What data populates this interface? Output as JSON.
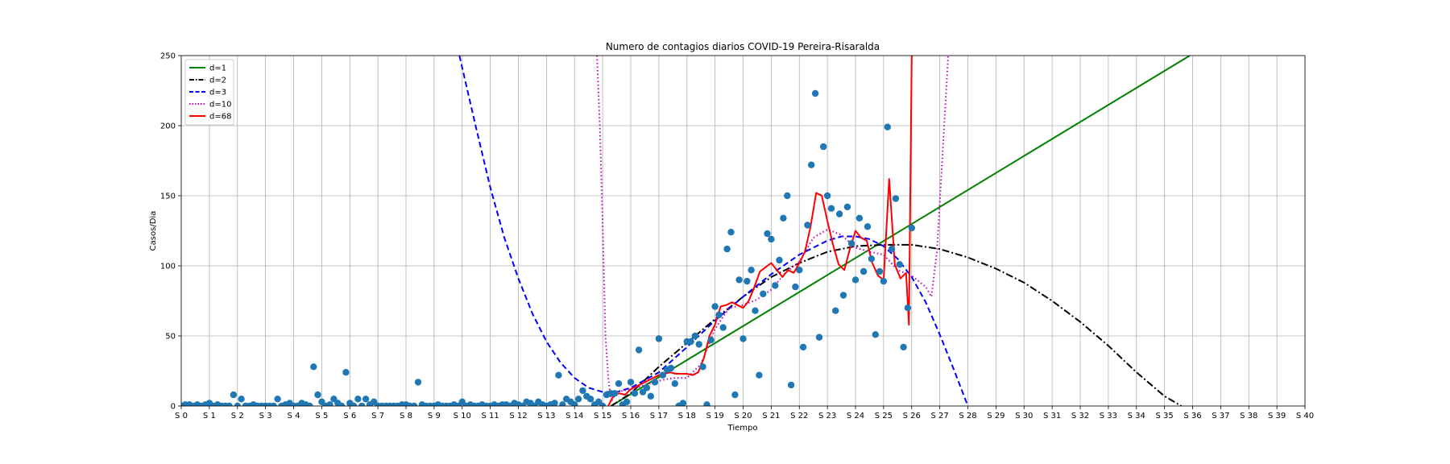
{
  "chart_data": {
    "type": "scatter",
    "title": "Numero de contagios diarios COVID-19 Pereira-Risaralda",
    "xlabel": "Tiempo",
    "ylabel": "Casos/Dia",
    "xlim": [
      0,
      40
    ],
    "ylim": [
      0,
      250
    ],
    "grid": true,
    "legend_position": "upper-left",
    "x_ticks": [
      "S 0",
      "S 1",
      "S 2",
      "S 3",
      "S 4",
      "S 5",
      "S 6",
      "S 7",
      "S 8",
      "S 9",
      "S 10",
      "S 11",
      "S 12",
      "S 13",
      "S 14",
      "S 15",
      "S 16",
      "S 17",
      "S 18",
      "S 19",
      "S 20",
      "S 21",
      "S 22",
      "S 23",
      "S 24",
      "S 25",
      "S 26",
      "S 27",
      "S 28",
      "S 29",
      "S 30",
      "S 31",
      "S 32",
      "S 33",
      "S 34",
      "S 35",
      "S 36",
      "S 37",
      "S 38",
      "S 39",
      "S 40"
    ],
    "y_ticks": [
      0,
      50,
      100,
      150,
      200,
      250
    ],
    "scatter_color": "#1f77b4",
    "points": [
      [
        0.0,
        0
      ],
      [
        0.14,
        1
      ],
      [
        0.29,
        1
      ],
      [
        0.43,
        0
      ],
      [
        0.57,
        1
      ],
      [
        0.71,
        0
      ],
      [
        0.86,
        1
      ],
      [
        1.0,
        2
      ],
      [
        1.14,
        0
      ],
      [
        1.29,
        1
      ],
      [
        1.43,
        0
      ],
      [
        1.57,
        0
      ],
      [
        1.71,
        0
      ],
      [
        1.86,
        8
      ],
      [
        2.0,
        0
      ],
      [
        2.14,
        5
      ],
      [
        2.29,
        0
      ],
      [
        2.43,
        0
      ],
      [
        2.57,
        1
      ],
      [
        2.71,
        0
      ],
      [
        2.86,
        0
      ],
      [
        3.0,
        0
      ],
      [
        3.14,
        0
      ],
      [
        3.29,
        0
      ],
      [
        3.43,
        5
      ],
      [
        3.57,
        0
      ],
      [
        3.71,
        1
      ],
      [
        3.86,
        2
      ],
      [
        4.0,
        0
      ],
      [
        4.14,
        0
      ],
      [
        4.29,
        2
      ],
      [
        4.43,
        1
      ],
      [
        4.57,
        0
      ],
      [
        4.71,
        28
      ],
      [
        4.86,
        8
      ],
      [
        5.0,
        3
      ],
      [
        5.14,
        0
      ],
      [
        5.29,
        1
      ],
      [
        5.43,
        5
      ],
      [
        5.57,
        2
      ],
      [
        5.71,
        0
      ],
      [
        5.86,
        24
      ],
      [
        6.0,
        2
      ],
      [
        6.14,
        0
      ],
      [
        6.29,
        5
      ],
      [
        6.43,
        0
      ],
      [
        6.57,
        5
      ],
      [
        6.71,
        1
      ],
      [
        6.86,
        3
      ],
      [
        7.0,
        0
      ],
      [
        7.14,
        0
      ],
      [
        7.29,
        0
      ],
      [
        7.43,
        0
      ],
      [
        7.57,
        0
      ],
      [
        7.71,
        0
      ],
      [
        7.86,
        1
      ],
      [
        8.0,
        1
      ],
      [
        8.14,
        0
      ],
      [
        8.29,
        0
      ],
      [
        8.43,
        17
      ],
      [
        8.57,
        1
      ],
      [
        8.71,
        0
      ],
      [
        8.86,
        0
      ],
      [
        9.0,
        0
      ],
      [
        9.14,
        1
      ],
      [
        9.29,
        0
      ],
      [
        9.43,
        0
      ],
      [
        9.57,
        0
      ],
      [
        9.71,
        1
      ],
      [
        9.86,
        0
      ],
      [
        10.0,
        3
      ],
      [
        10.14,
        0
      ],
      [
        10.29,
        1
      ],
      [
        10.43,
        0
      ],
      [
        10.57,
        0
      ],
      [
        10.71,
        1
      ],
      [
        10.86,
        0
      ],
      [
        11.0,
        0
      ],
      [
        11.14,
        1
      ],
      [
        11.29,
        0
      ],
      [
        11.43,
        1
      ],
      [
        11.57,
        1
      ],
      [
        11.71,
        0
      ],
      [
        11.86,
        2
      ],
      [
        12.0,
        1
      ],
      [
        12.14,
        0
      ],
      [
        12.29,
        3
      ],
      [
        12.43,
        2
      ],
      [
        12.57,
        0
      ],
      [
        12.71,
        3
      ],
      [
        12.86,
        1
      ],
      [
        13.0,
        0
      ],
      [
        13.14,
        1
      ],
      [
        13.29,
        2
      ],
      [
        13.43,
        22
      ],
      [
        13.57,
        1
      ],
      [
        13.71,
        5
      ],
      [
        13.86,
        3
      ],
      [
        14.0,
        1
      ],
      [
        14.14,
        5
      ],
      [
        14.29,
        11
      ],
      [
        14.43,
        7
      ],
      [
        14.57,
        5
      ],
      [
        14.71,
        1
      ],
      [
        14.86,
        3
      ],
      [
        15.0,
        0
      ],
      [
        15.14,
        8
      ],
      [
        15.29,
        9
      ],
      [
        15.43,
        9
      ],
      [
        15.57,
        16
      ],
      [
        15.71,
        1
      ],
      [
        15.86,
        3
      ],
      [
        16.0,
        17
      ],
      [
        16.14,
        9
      ],
      [
        16.29,
        40
      ],
      [
        16.43,
        10
      ],
      [
        16.57,
        13
      ],
      [
        16.71,
        7
      ],
      [
        16.86,
        17
      ],
      [
        17.0,
        48
      ],
      [
        17.14,
        22
      ],
      [
        17.29,
        26
      ],
      [
        17.43,
        27
      ],
      [
        17.57,
        16
      ],
      [
        17.71,
        0
      ],
      [
        17.86,
        2
      ],
      [
        18.0,
        46
      ],
      [
        18.14,
        46
      ],
      [
        18.29,
        50
      ],
      [
        18.43,
        44
      ],
      [
        18.57,
        28
      ],
      [
        18.71,
        1
      ],
      [
        18.86,
        47
      ],
      [
        19.0,
        71
      ],
      [
        19.14,
        65
      ],
      [
        19.29,
        56
      ],
      [
        19.43,
        112
      ],
      [
        19.57,
        124
      ],
      [
        19.71,
        8
      ],
      [
        19.86,
        90
      ],
      [
        20.0,
        48
      ],
      [
        20.14,
        89
      ],
      [
        20.29,
        97
      ],
      [
        20.43,
        68
      ],
      [
        20.57,
        22
      ],
      [
        20.71,
        80
      ],
      [
        20.86,
        123
      ],
      [
        21.0,
        119
      ],
      [
        21.14,
        86
      ],
      [
        21.29,
        104
      ],
      [
        21.43,
        134
      ],
      [
        21.57,
        150
      ],
      [
        21.71,
        15
      ],
      [
        21.86,
        85
      ],
      [
        22.0,
        97
      ],
      [
        22.14,
        42
      ],
      [
        22.29,
        129
      ],
      [
        22.43,
        172
      ],
      [
        22.57,
        223
      ],
      [
        22.71,
        49
      ],
      [
        22.86,
        185
      ],
      [
        23.0,
        150
      ],
      [
        23.14,
        141
      ],
      [
        23.29,
        68
      ],
      [
        23.43,
        137
      ],
      [
        23.57,
        79
      ],
      [
        23.71,
        142
      ],
      [
        23.86,
        116
      ],
      [
        24.0,
        90
      ],
      [
        24.14,
        134
      ],
      [
        24.29,
        96
      ],
      [
        24.43,
        128
      ],
      [
        24.57,
        105
      ],
      [
        24.71,
        51
      ],
      [
        24.86,
        96
      ],
      [
        25.0,
        89
      ],
      [
        25.14,
        199
      ],
      [
        25.29,
        112
      ],
      [
        25.43,
        148
      ],
      [
        25.57,
        101
      ],
      [
        25.71,
        42
      ],
      [
        25.86,
        70
      ],
      [
        26.0,
        127
      ]
    ],
    "series": [
      {
        "name": "d=1",
        "color": "#008000",
        "dash": "solid",
        "x": [
          15.3,
          35.9
        ],
        "y": [
          0,
          250
        ]
      },
      {
        "name": "d=2",
        "color": "#000000",
        "dash": "dashdot",
        "x": [
          15.3,
          16,
          17,
          18,
          19,
          20,
          21,
          22,
          23,
          24,
          25,
          26,
          27,
          28,
          29,
          30,
          31,
          32,
          33,
          34,
          35,
          35.6
        ],
        "y": [
          0,
          9,
          28,
          45,
          62,
          78,
          92,
          102,
          110,
          114,
          115,
          115,
          112,
          106,
          98,
          88,
          75,
          60,
          43,
          24,
          7,
          0
        ]
      },
      {
        "name": "d=3",
        "color": "#0000ff",
        "dash": "dashed",
        "x": [
          9.9,
          10.5,
          11,
          11.5,
          12,
          12.5,
          13,
          13.5,
          14,
          14.5,
          15,
          15.5,
          16,
          17,
          18,
          19,
          20,
          21,
          22,
          23,
          23.5,
          24,
          24.5,
          25,
          25.5,
          26,
          26.5,
          27,
          27.5,
          28
        ],
        "y": [
          250,
          198,
          156,
          120,
          91,
          66,
          46,
          31,
          20,
          13,
          10,
          10,
          13,
          24,
          42,
          61,
          78,
          94,
          108,
          118,
          121,
          121,
          119,
          114,
          105,
          92,
          74,
          51,
          26,
          0
        ]
      },
      {
        "name": "d=10",
        "color": "#bf00bf",
        "dash": "dotted",
        "x": [
          14.8,
          14.9,
          15.0,
          15.1,
          15.2,
          15.3,
          15.5,
          16,
          16.5,
          17,
          17.5,
          18,
          18.5,
          19,
          19.5,
          20,
          20.5,
          21,
          21.5,
          22,
          22.5,
          23,
          23.5,
          24,
          24.5,
          25,
          25.5,
          26,
          26.5,
          26.7,
          26.9,
          27.1,
          27.3
        ],
        "y": [
          250,
          200,
          130,
          50,
          20,
          3,
          10,
          12,
          15,
          18,
          20,
          20,
          30,
          55,
          70,
          72,
          76,
          83,
          95,
          103,
          120,
          126,
          122,
          113,
          110,
          108,
          97,
          93,
          85,
          78,
          110,
          180,
          250
        ]
      },
      {
        "name": "d=68",
        "color": "#ff0000",
        "dash": "solid",
        "x": [
          15.2,
          15.4,
          15.6,
          15.8,
          16.0,
          16.2,
          16.4,
          16.6,
          16.8,
          17.0,
          17.2,
          17.4,
          17.6,
          17.8,
          18.0,
          18.2,
          18.4,
          18.6,
          18.8,
          19.0,
          19.2,
          19.4,
          19.6,
          19.8,
          20.0,
          20.2,
          20.4,
          20.6,
          20.8,
          21.0,
          21.2,
          21.4,
          21.6,
          21.8,
          22.0,
          22.2,
          22.4,
          22.6,
          22.8,
          23.0,
          23.2,
          23.4,
          23.6,
          23.8,
          24.0,
          24.2,
          24.4,
          24.6,
          24.8,
          25.0,
          25.2,
          25.4,
          25.6,
          25.8,
          25.9,
          25.95,
          26.0
        ],
        "y": [
          0,
          8,
          9,
          8,
          12,
          14,
          16,
          18,
          20,
          22,
          23,
          24,
          23,
          23,
          23,
          22,
          24,
          34,
          50,
          58,
          71,
          72,
          74,
          72,
          70,
          75,
          85,
          96,
          99,
          102,
          97,
          92,
          97,
          95,
          102,
          110,
          128,
          152,
          150,
          132,
          115,
          101,
          97,
          112,
          125,
          120,
          118,
          102,
          93,
          90,
          162,
          101,
          91,
          95,
          58,
          150,
          250
        ]
      }
    ]
  }
}
